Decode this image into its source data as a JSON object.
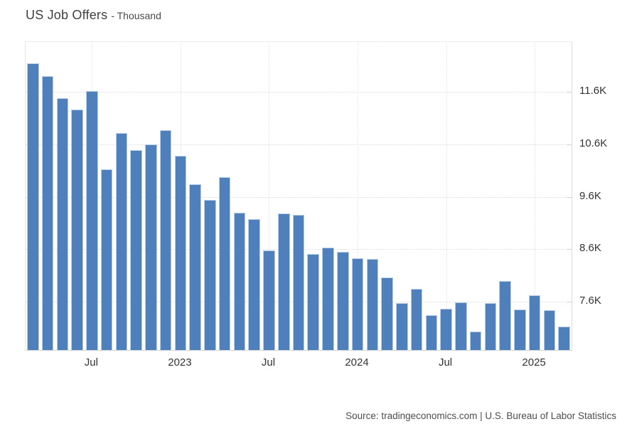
{
  "source": {
    "text": "Source: tradingeconomics.com | U.S. Bureau of Labor Statistics"
  },
  "chart_data": {
    "type": "bar",
    "title": "US Job Offers",
    "subtitle": "- Thousand",
    "unit": "Thousand",
    "categories": [
      "Mar 2022",
      "Apr 2022",
      "May 2022",
      "Jun 2022",
      "Jul 2022",
      "Aug 2022",
      "Sep 2022",
      "Oct 2022",
      "Nov 2022",
      "Dec 2022",
      "Jan 2023",
      "Feb 2023",
      "Mar 2023",
      "Apr 2023",
      "May 2023",
      "Jun 2023",
      "Jul 2023",
      "Aug 2023",
      "Sep 2023",
      "Oct 2023",
      "Nov 2023",
      "Dec 2023",
      "Jan 2024",
      "Feb 2024",
      "Mar 2024",
      "Apr 2024",
      "May 2024",
      "Jun 2024",
      "Jul 2024",
      "Aug 2024",
      "Sep 2024",
      "Oct 2024",
      "Nov 2024",
      "Dec 2024",
      "Jan 2025",
      "Feb 2025",
      "Mar 2025"
    ],
    "values": [
      12140,
      11900,
      11480,
      11260,
      11620,
      10120,
      10810,
      10490,
      10600,
      10870,
      10380,
      9840,
      9540,
      9970,
      9290,
      9170,
      8580,
      9280,
      9250,
      8510,
      8630,
      8550,
      8430,
      8410,
      8060,
      7570,
      7850,
      7340,
      7460,
      7590,
      7030,
      7580,
      7990,
      7450,
      7720,
      7440,
      7130
    ],
    "y_ticks": [
      {
        "label": "11.6K",
        "value": 11600
      },
      {
        "label": "10.6K",
        "value": 10600
      },
      {
        "label": "9.6K",
        "value": 9600
      },
      {
        "label": "8.6K",
        "value": 8600
      },
      {
        "label": "7.6K",
        "value": 7600
      }
    ],
    "x_ticks": [
      {
        "label": "Jul",
        "index": 4
      },
      {
        "label": "2023",
        "index": 10
      },
      {
        "label": "Jul",
        "index": 16
      },
      {
        "label": "2024",
        "index": 22
      },
      {
        "label": "Jul",
        "index": 28
      },
      {
        "label": "2025",
        "index": 34
      }
    ],
    "ylim": [
      6680,
      12550
    ],
    "xlabel": "",
    "ylabel": "Thousand",
    "grid": true,
    "legend": false,
    "bar_color": "#4f80bc",
    "bar_border_color": "#b9cfe8",
    "axis_label_color": "#333333",
    "grid_color": "#dddddd"
  }
}
